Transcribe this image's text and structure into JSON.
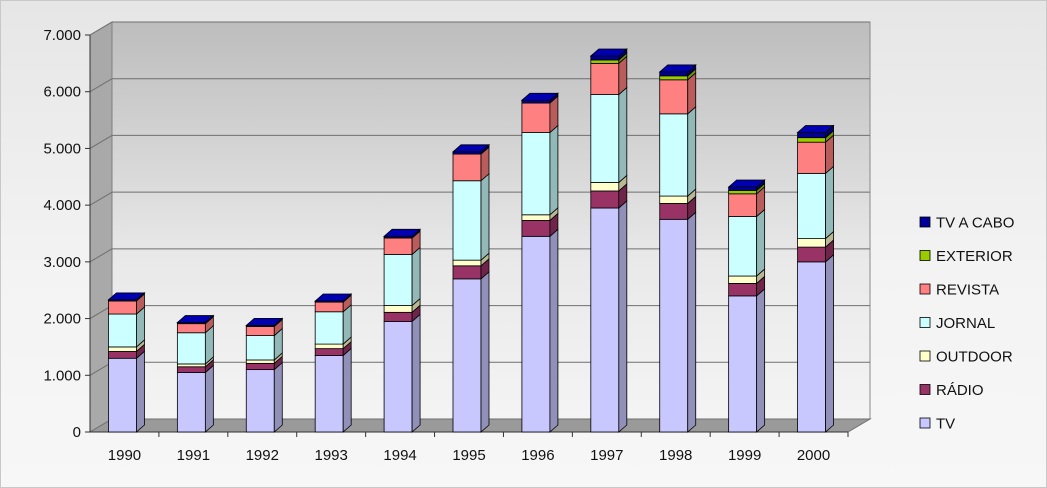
{
  "chart_data": {
    "type": "bar",
    "stacked": true,
    "three_d": true,
    "categories": [
      "1990",
      "1991",
      "1992",
      "1993",
      "1994",
      "1995",
      "1996",
      "1997",
      "1998",
      "1999",
      "2000"
    ],
    "ylim": [
      0,
      7000
    ],
    "yticks": [
      0,
      1000,
      2000,
      3000,
      4000,
      5000,
      6000,
      7000
    ],
    "ytick_labels": [
      "0",
      "1.000",
      "2.000",
      "3.000",
      "4.000",
      "5.000",
      "6.000",
      "7.000"
    ],
    "grid": true,
    "legend_position": "right",
    "series": [
      {
        "name": "TV",
        "color": "#c8c8ff",
        "values": [
          1300,
          1050,
          1100,
          1350,
          1950,
          2700,
          3450,
          3950,
          3750,
          2400,
          3000
        ]
      },
      {
        "name": "RÁDIO",
        "color": "#993366",
        "values": [
          120,
          100,
          110,
          120,
          160,
          230,
          280,
          300,
          280,
          220,
          260
        ]
      },
      {
        "name": "OUTDOOR",
        "color": "#ffffcc",
        "values": [
          80,
          50,
          60,
          80,
          120,
          100,
          100,
          150,
          130,
          130,
          150
        ]
      },
      {
        "name": "JORNAL",
        "color": "#ccffff",
        "values": [
          580,
          550,
          430,
          570,
          900,
          1400,
          1450,
          1550,
          1450,
          1050,
          1150
        ]
      },
      {
        "name": "REVISTA",
        "color": "#ff8080",
        "values": [
          230,
          160,
          160,
          170,
          290,
          470,
          520,
          550,
          600,
          400,
          550
        ]
      },
      {
        "name": "EXTERIOR",
        "color": "#99cc00",
        "values": [
          0,
          0,
          0,
          0,
          0,
          0,
          0,
          60,
          70,
          60,
          80
        ]
      },
      {
        "name": "TV A CABO",
        "color": "#000099",
        "values": [
          20,
          20,
          20,
          20,
          30,
          40,
          50,
          70,
          70,
          60,
          90
        ]
      }
    ]
  }
}
